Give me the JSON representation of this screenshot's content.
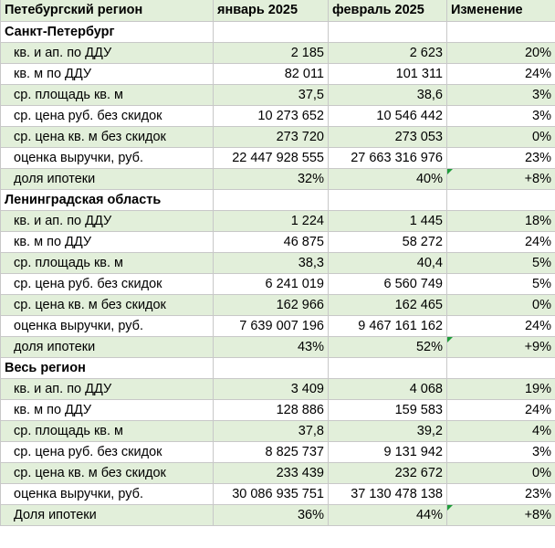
{
  "header": [
    "Петебургский регион",
    "январь 2025",
    "февраль 2025",
    "Изменение"
  ],
  "sections": [
    {
      "title": "Санкт-Петербург",
      "rows": [
        {
          "label": "кв. и ап. по ДДУ",
          "jan": "2 185",
          "feb": "2 623",
          "change": "20%"
        },
        {
          "label": "кв. м по ДДУ",
          "jan": "82 011",
          "feb": "101 311",
          "change": "24%"
        },
        {
          "label": "ср. площадь кв. м",
          "jan": "37,5",
          "feb": "38,6",
          "change": "3%"
        },
        {
          "label": "ср. цена руб. без скидок",
          "jan": "10 273 652",
          "feb": "10 546 442",
          "change": "3%"
        },
        {
          "label": "ср. цена кв. м без скидок",
          "jan": "273 720",
          "feb": "273 053",
          "change": "0%"
        },
        {
          "label": "оценка выручки, руб.",
          "jan": "22 447 928 555",
          "feb": "27 663 316 976",
          "change": "23%"
        },
        {
          "label": "доля ипотеки",
          "jan": "32%",
          "feb": "40%",
          "change": "+8%"
        }
      ]
    },
    {
      "title": "Ленинградская область",
      "rows": [
        {
          "label": "кв. и ап. по ДДУ",
          "jan": "1 224",
          "feb": "1 445",
          "change": "18%"
        },
        {
          "label": "кв. м по ДДУ",
          "jan": "46 875",
          "feb": "58 272",
          "change": "24%"
        },
        {
          "label": "ср. площадь кв. м",
          "jan": "38,3",
          "feb": "40,4",
          "change": "5%"
        },
        {
          "label": "ср. цена руб. без скидок",
          "jan": "6 241 019",
          "feb": "6 560 749",
          "change": "5%"
        },
        {
          "label": "ср. цена кв. м без скидок",
          "jan": "162 966",
          "feb": "162 465",
          "change": "0%"
        },
        {
          "label": "оценка выручки, руб.",
          "jan": "7 639 007 196",
          "feb": "9 467 161 162",
          "change": "24%"
        },
        {
          "label": "доля ипотеки",
          "jan": "43%",
          "feb": "52%",
          "change": "+9%"
        }
      ]
    },
    {
      "title": "Весь регион",
      "rows": [
        {
          "label": "кв. и ап. по ДДУ",
          "jan": "3 409",
          "feb": "4 068",
          "change": "19%"
        },
        {
          "label": "кв. м по ДДУ",
          "jan": "128 886",
          "feb": "159 583",
          "change": "24%"
        },
        {
          "label": "ср. площадь кв. м",
          "jan": "37,8",
          "feb": "39,2",
          "change": "4%"
        },
        {
          "label": "ср. цена руб. без скидок",
          "jan": "8 825 737",
          "feb": "9 131 942",
          "change": "3%"
        },
        {
          "label": "ср. цена кв. м без скидок",
          "jan": "233 439",
          "feb": "232 672",
          "change": "0%"
        },
        {
          "label": "оценка выручки, руб.",
          "jan": "30 086 935 751",
          "feb": "37 130 478 138",
          "change": "23%"
        },
        {
          "label": "Доля ипотеки",
          "jan": "36%",
          "feb": "44%",
          "change": "+8%"
        }
      ]
    }
  ],
  "colors": {
    "band": "#e2efda",
    "grid": "#c8c8c8",
    "error_marker": "#1e9b3a"
  }
}
